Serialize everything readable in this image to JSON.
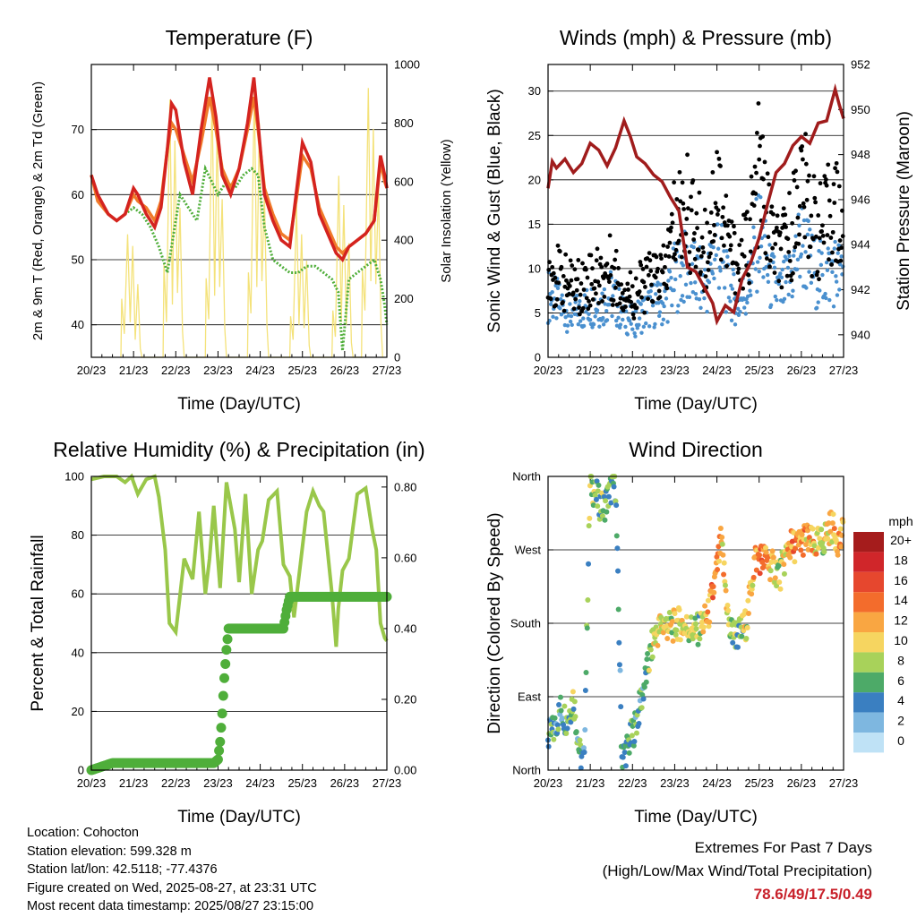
{
  "info": {
    "location": "Location: Cohocton",
    "elevation": "Station elevation: 599.328 m",
    "latlon": "Station lat/lon: 42.5118; -77.4376",
    "created": "Figure created on Wed, 2025-08-27, at 23:31 UTC",
    "timestamp": "Most recent data timestamp: 2025/08/27 23:15:00"
  },
  "extremes": {
    "title": "Extremes For Past 7 Days",
    "subtitle": "(High/Low/Max Wind/Total Precipitation)",
    "values": "78.6/49/17.5/0.49",
    "color": "#c8202a"
  },
  "chart_data": [
    {
      "type": "line",
      "title": "Temperature (F)",
      "xlabel": "Time (Day/UTC)",
      "ylabel": "2m & 9m T (Red, Orange) & 2m Td (Green)",
      "y2label": "Solar Insolation (Yellow)",
      "xticks": [
        "20/23",
        "21/23",
        "22/23",
        "23/23",
        "24/23",
        "25/23",
        "26/23",
        "27/23"
      ],
      "xlim": [
        0,
        7
      ],
      "ylim": [
        35,
        80
      ],
      "yticks": [
        40,
        50,
        60,
        70
      ],
      "y2lim": [
        0,
        1000
      ],
      "y2ticks": [
        0,
        200,
        400,
        600,
        800,
        1000
      ],
      "grid": true,
      "series": [
        {
          "color": "#d4231f",
          "axis": "left",
          "x": [
            0,
            0.15,
            0.4,
            0.6,
            0.8,
            1.0,
            1.1,
            1.3,
            1.5,
            1.65,
            1.8,
            1.9,
            2.0,
            2.2,
            2.4,
            2.6,
            2.8,
            2.95,
            3.1,
            3.3,
            3.5,
            3.7,
            3.85,
            3.95,
            4.1,
            4.3,
            4.5,
            4.7,
            4.85,
            5.0,
            5.2,
            5.4,
            5.6,
            5.8,
            5.95,
            6.1,
            6.3,
            6.5,
            6.7,
            6.85,
            6.95,
            7.0
          ],
          "y": [
            63,
            60,
            57,
            56,
            57,
            61,
            60,
            57,
            55,
            58,
            67,
            74,
            73,
            65,
            60,
            70,
            78,
            72,
            63,
            60,
            64,
            71,
            78,
            71,
            60,
            56,
            53,
            52,
            60,
            68,
            65,
            57,
            54,
            51,
            50,
            52,
            53,
            54,
            56,
            66,
            63,
            61
          ]
        },
        {
          "color": "#f07a2a",
          "axis": "left",
          "x": [
            0,
            0.15,
            0.4,
            0.6,
            0.8,
            1.0,
            1.1,
            1.3,
            1.5,
            1.65,
            1.8,
            1.9,
            2.0,
            2.2,
            2.4,
            2.6,
            2.8,
            2.95,
            3.1,
            3.3,
            3.5,
            3.7,
            3.85,
            3.95,
            4.1,
            4.3,
            4.5,
            4.7,
            4.85,
            5.0,
            5.2,
            5.4,
            5.6,
            5.8,
            5.95,
            6.1,
            6.3,
            6.5,
            6.7,
            6.85,
            6.95,
            7.0
          ],
          "y": [
            63,
            59,
            57,
            56,
            57,
            60,
            59,
            58,
            56,
            59,
            67,
            71,
            70,
            66,
            62,
            68,
            75,
            70,
            64,
            61,
            64,
            70,
            75,
            70,
            61,
            57,
            54,
            53,
            59,
            66,
            64,
            58,
            55,
            52,
            51,
            52,
            53,
            54,
            56,
            65,
            62,
            61
          ]
        },
        {
          "color": "#4fae3a",
          "axis": "left",
          "x": [
            0,
            0.15,
            0.4,
            0.6,
            0.8,
            1.0,
            1.2,
            1.4,
            1.6,
            1.8,
            1.95,
            2.1,
            2.3,
            2.5,
            2.7,
            2.85,
            3.0,
            3.2,
            3.4,
            3.6,
            3.8,
            3.95,
            4.1,
            4.3,
            4.5,
            4.7,
            4.9,
            5.1,
            5.3,
            5.5,
            5.7,
            5.85,
            5.95,
            6.1,
            6.3,
            6.5,
            6.7,
            6.85,
            6.95,
            7.0
          ],
          "y": [
            63,
            59,
            57,
            56,
            57,
            58,
            57,
            55,
            52,
            48,
            54,
            60,
            58,
            56,
            64,
            62,
            60,
            62,
            61,
            63,
            64,
            63,
            55,
            50,
            49,
            48,
            48,
            49,
            49,
            48,
            47,
            45,
            36,
            47,
            48,
            49,
            50,
            47,
            43,
            40
          ]
        },
        {
          "color": "#f4e27a",
          "axis": "right",
          "x": [
            0.7,
            0.72,
            0.78,
            0.86,
            0.92,
            0.98,
            1.04,
            1.1,
            1.16,
            1.2,
            1.7,
            1.72,
            1.78,
            1.86,
            1.92,
            1.98,
            2.04,
            2.1,
            2.16,
            2.2,
            2.7,
            2.72,
            2.78,
            2.86,
            2.92,
            2.98,
            3.04,
            3.1,
            3.16,
            3.2,
            3.7,
            3.72,
            3.78,
            3.86,
            3.92,
            3.98,
            4.04,
            4.1,
            4.16,
            4.2,
            4.7,
            4.72,
            4.78,
            4.86,
            4.92,
            4.98,
            5.04,
            5.1,
            5.16,
            5.2,
            5.7,
            5.72,
            5.78,
            5.86,
            5.92,
            5.98,
            6.04,
            6.1,
            6.16,
            6.2,
            6.4,
            6.42,
            6.48,
            6.56,
            6.62,
            6.68,
            6.74,
            6.8,
            6.86,
            6.9
          ],
          "y": [
            0,
            200,
            80,
            420,
            120,
            380,
            60,
            250,
            30,
            0,
            0,
            320,
            120,
            880,
            180,
            740,
            220,
            510,
            90,
            0,
            0,
            270,
            130,
            910,
            210,
            790,
            240,
            540,
            100,
            0,
            0,
            290,
            150,
            930,
            240,
            800,
            260,
            560,
            110,
            0,
            0,
            140,
            60,
            520,
            110,
            420,
            100,
            330,
            40,
            0,
            0,
            160,
            70,
            620,
            120,
            520,
            110,
            390,
            50,
            0,
            0,
            300,
            160,
            920,
            260,
            780,
            250,
            580,
            120,
            0
          ]
        }
      ]
    },
    {
      "type": "scatter",
      "title": "Winds (mph) & Pressure (mb)",
      "xlabel": "Time (Day/UTC)",
      "ylabel": "Sonic Wind & Gust (Blue, Black)",
      "y2label": "Station Pressure (Maroon)",
      "xticks": [
        "20/23",
        "21/23",
        "22/23",
        "23/23",
        "24/23",
        "25/23",
        "26/23",
        "27/23"
      ],
      "xlim": [
        0,
        7
      ],
      "ylim": [
        0,
        33
      ],
      "yticks": [
        0,
        5,
        10,
        15,
        20,
        25,
        30
      ],
      "y2lim": [
        939,
        952
      ],
      "y2ticks": [
        940,
        942,
        944,
        946,
        948,
        950,
        952
      ],
      "grid": true,
      "series": [
        {
          "color": "#4a90cf",
          "kind": "wind",
          "x": [
            0.0,
            0.25,
            0.5,
            0.75,
            1.0,
            1.25,
            1.5,
            1.75,
            2.0,
            2.25,
            2.5,
            2.75,
            3.0,
            3.25,
            3.5,
            3.75,
            4.0,
            4.25,
            4.5,
            4.75,
            5.0,
            5.25,
            5.5,
            5.75,
            6.0,
            6.25,
            6.5,
            6.75,
            7.0
          ],
          "y": [
            7,
            6,
            5,
            5,
            6,
            6,
            7,
            5,
            4,
            5,
            6,
            6,
            9,
            10,
            9,
            8,
            13,
            8,
            6,
            8,
            14,
            9,
            7,
            9,
            13,
            10,
            9,
            10,
            9
          ]
        },
        {
          "color": "#000000",
          "kind": "gust",
          "x": [
            0.0,
            0.25,
            0.5,
            0.75,
            1.0,
            1.25,
            1.5,
            1.75,
            2.0,
            2.25,
            2.5,
            2.75,
            3.0,
            3.25,
            3.5,
            3.75,
            4.0,
            4.25,
            4.5,
            4.75,
            5.0,
            5.25,
            5.5,
            5.75,
            6.0,
            6.25,
            6.5,
            6.75,
            7.0
          ],
          "y": [
            10,
            9,
            8,
            8,
            9,
            9,
            10,
            8,
            7,
            8,
            9,
            9,
            15,
            17,
            14,
            12,
            20,
            13,
            10,
            13,
            21,
            14,
            11,
            14,
            20,
            15,
            14,
            17,
            14
          ]
        },
        {
          "color": "#a01c1c",
          "axis": "right",
          "kind": "pressure",
          "x": [
            0,
            0.1,
            0.2,
            0.4,
            0.6,
            0.8,
            1.0,
            1.2,
            1.4,
            1.6,
            1.8,
            1.95,
            2.1,
            2.3,
            2.5,
            2.7,
            2.9,
            3.1,
            3.3,
            3.5,
            3.7,
            3.9,
            4.0,
            4.2,
            4.4,
            4.6,
            4.8,
            5.0,
            5.2,
            5.4,
            5.6,
            5.8,
            6.0,
            6.2,
            6.4,
            6.6,
            6.8,
            6.9,
            7.0
          ],
          "y": [
            946.5,
            947.7,
            947.4,
            947.8,
            947.2,
            947.6,
            948.5,
            948.2,
            947.5,
            948.3,
            949.5,
            948.8,
            947.9,
            947.6,
            947.1,
            946.8,
            946.1,
            945.5,
            943.0,
            942.8,
            942.1,
            941.4,
            940.6,
            941.3,
            941.0,
            942.5,
            943.2,
            944.3,
            945.8,
            947.2,
            947.6,
            948.4,
            948.8,
            948.5,
            949.4,
            949.5,
            950.9,
            950.2,
            949.6
          ]
        }
      ]
    },
    {
      "type": "line",
      "title": "Relative Humidity (%) & Precipitation (in)",
      "xlabel": "Time (Day/UTC)",
      "ylabel": "Percent & Total Rainfall",
      "xticks": [
        "20/23",
        "21/23",
        "22/23",
        "23/23",
        "24/23",
        "25/23",
        "26/23",
        "27/23"
      ],
      "xlim": [
        0,
        7
      ],
      "ylim": [
        0,
        100
      ],
      "yticks": [
        0,
        20,
        40,
        60,
        80,
        100
      ],
      "y2lim": [
        0,
        0.83
      ],
      "y2ticks": [
        "0.00",
        "0.20",
        "0.40",
        "0.60",
        "0.80"
      ],
      "grid": true,
      "series": [
        {
          "color": "#99c74a",
          "axis": "left",
          "x": [
            0,
            0.3,
            0.6,
            0.8,
            0.95,
            1.1,
            1.3,
            1.5,
            1.6,
            1.75,
            1.85,
            2.0,
            2.2,
            2.4,
            2.55,
            2.7,
            2.8,
            2.9,
            3.05,
            3.2,
            3.4,
            3.5,
            3.65,
            3.8,
            3.95,
            4.05,
            4.2,
            4.4,
            4.55,
            4.7,
            4.8,
            4.95,
            5.1,
            5.25,
            5.4,
            5.5,
            5.7,
            5.8,
            5.85,
            5.95,
            6.1,
            6.3,
            6.5,
            6.65,
            6.75,
            6.85,
            6.95,
            7.0
          ],
          "y": [
            99,
            100,
            100,
            98,
            100,
            94,
            99,
            100,
            93,
            75,
            50,
            47,
            72,
            65,
            88,
            60,
            72,
            90,
            62,
            98,
            82,
            64,
            94,
            60,
            75,
            78,
            92,
            95,
            70,
            66,
            52,
            70,
            88,
            95,
            90,
            88,
            60,
            42,
            55,
            68,
            72,
            94,
            96,
            82,
            75,
            50,
            45,
            44
          ]
        },
        {
          "color": "#4fae3a",
          "axis": "right",
          "x": [
            0,
            0.5,
            1.0,
            1.5,
            2.0,
            2.5,
            2.9,
            3.0,
            3.05,
            3.1,
            3.15,
            3.2,
            3.25,
            3.4,
            3.8,
            4.3,
            4.55,
            4.62,
            4.7,
            5.2,
            5.8,
            6.4,
            7.0
          ],
          "y": [
            0,
            0.02,
            0.02,
            0.02,
            0.02,
            0.02,
            0.02,
            0.03,
            0.08,
            0.16,
            0.26,
            0.34,
            0.4,
            0.4,
            0.4,
            0.4,
            0.4,
            0.45,
            0.49,
            0.49,
            0.49,
            0.49,
            0.49
          ]
        }
      ]
    },
    {
      "type": "scatter",
      "title": "Wind Direction",
      "xlabel": "Time (Day/UTC)",
      "ylabel": "Direction (Colored By Speed)",
      "xticks": [
        "20/23",
        "21/23",
        "22/23",
        "23/23",
        "24/23",
        "25/23",
        "26/23",
        "27/23"
      ],
      "xlim": [
        0,
        7
      ],
      "ylim": [
        0,
        360
      ],
      "yticks": [
        "North",
        "East",
        "South",
        "West",
        "North"
      ],
      "grid": true,
      "legend": {
        "title": "mph",
        "labels": [
          "20+",
          "18",
          "16",
          "14",
          "12",
          "10",
          "8",
          "6",
          "4",
          "2",
          "0"
        ],
        "colors": [
          "#a51c1c",
          "#d0262a",
          "#e6472e",
          "#f36c2c",
          "#f9a642",
          "#f6d560",
          "#a8d25a",
          "#4daa68",
          "#3a7fc1",
          "#7eb7e0",
          "#bfe2f6"
        ],
        "placement": "right"
      },
      "series": [
        {
          "color": "#3a7fc1",
          "x": [
            0.0,
            0.15,
            0.3,
            0.45,
            0.6,
            0.75,
            0.85,
            1.0,
            1.1,
            1.3,
            1.5,
            1.6,
            1.75,
            1.9,
            2.1,
            2.3,
            2.5,
            2.7,
            2.9,
            3.1,
            3.3,
            3.5,
            3.6,
            3.8,
            3.95,
            4.1,
            4.3,
            4.5,
            4.7,
            4.9,
            5.1,
            5.3,
            5.5,
            5.7,
            5.9,
            6.1,
            6.3,
            6.5,
            6.7,
            6.9,
            7.0
          ],
          "y": [
            40,
            50,
            75,
            60,
            90,
            20,
            10,
            355,
            340,
            320,
            345,
            350,
            15,
            30,
            60,
            110,
            160,
            180,
            175,
            180,
            175,
            170,
            175,
            190,
            230,
            280,
            170,
            165,
            180,
            260,
            260,
            250,
            240,
            275,
            275,
            285,
            275,
            280,
            300,
            280,
            290
          ],
          "speed": [
            5,
            6,
            4,
            6,
            7,
            5,
            4,
            8,
            6,
            7,
            6,
            5,
            4,
            6,
            5,
            6,
            9,
            10,
            9,
            8,
            9,
            8,
            7,
            12,
            14,
            12,
            8,
            6,
            9,
            12,
            14,
            10,
            7,
            12,
            14,
            12,
            11,
            9,
            10,
            12,
            11
          ]
        }
      ]
    }
  ]
}
